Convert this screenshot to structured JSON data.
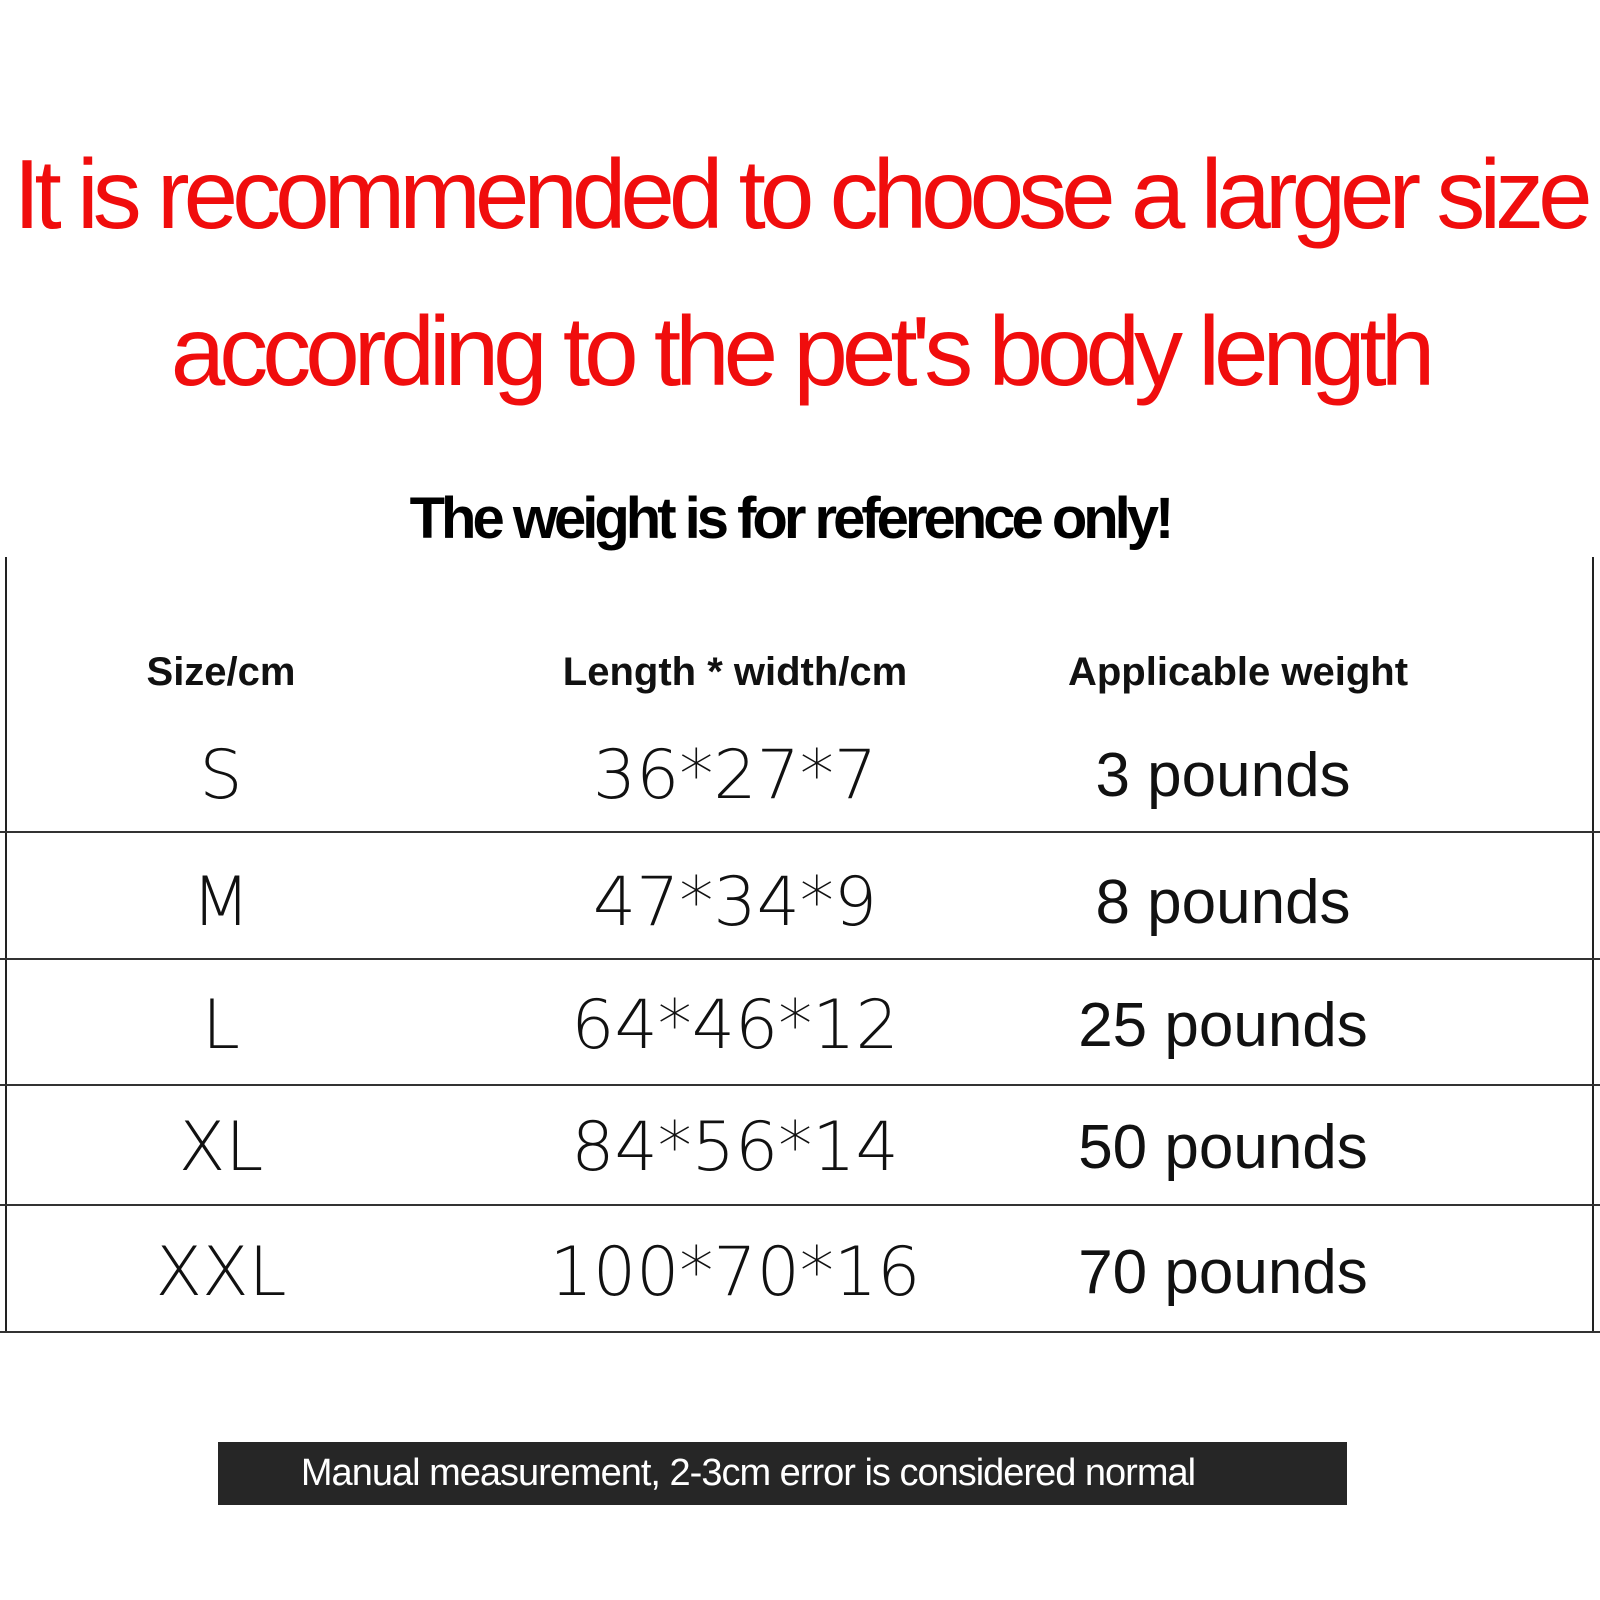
{
  "headline": {
    "line1": "It is recommended to choose a larger size",
    "line2": "according to the pet's body length",
    "color": "#f00d0d"
  },
  "subtitle": "The weight is for reference only!",
  "table": {
    "headers": [
      "Size/cm",
      "Length * width/cm",
      "Applicable weight"
    ],
    "rows": [
      {
        "size": "S",
        "dims": "36*27*7",
        "weight": "3 pounds"
      },
      {
        "size": "M",
        "dims": "47*34*9",
        "weight": "8 pounds"
      },
      {
        "size": "L",
        "dims": "64*46*12",
        "weight": "25 pounds"
      },
      {
        "size": "XL",
        "dims": "84*56*14",
        "weight": "50 pounds"
      },
      {
        "size": "XXL",
        "dims": "100*70*16",
        "weight": "70 pounds"
      }
    ]
  },
  "footer_note": "Manual measurement, 2-3cm error is considered normal"
}
